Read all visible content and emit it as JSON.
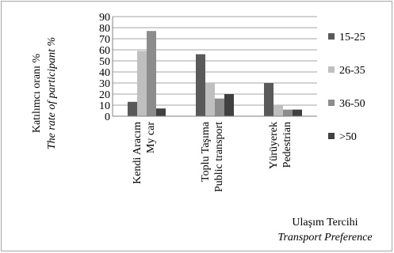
{
  "chart_data": {
    "type": "bar",
    "categories": [
      [
        "Kendi Aracım",
        "My car"
      ],
      [
        "Toplu Taşıma",
        "Public transport"
      ],
      [
        "Yürüyerek",
        "Pedestrian"
      ]
    ],
    "series": [
      {
        "name": "15-25",
        "color": "#595959",
        "values": [
          13,
          56,
          30
        ]
      },
      {
        "name": "26-35",
        "color": "#bfbfbf",
        "values": [
          59,
          30,
          10
        ]
      },
      {
        "name": "36-50",
        "color": "#8c8c8c",
        "values": [
          77,
          16,
          6
        ]
      },
      {
        "name": ">50",
        "color": "#404040",
        "values": [
          7,
          20,
          6
        ]
      }
    ],
    "ylim": [
      0,
      90
    ],
    "yticks": [
      "0",
      "10",
      "20",
      "30",
      "40",
      "50",
      "60",
      "70",
      "80",
      "90"
    ],
    "ylabel": "Katılımcı oranı %",
    "ylabel_en": "The rate of participant %",
    "xlabel": "Ulaşım Tercihi",
    "xlabel_en": "Transport Preference",
    "grid": true,
    "legend_position": "right"
  }
}
